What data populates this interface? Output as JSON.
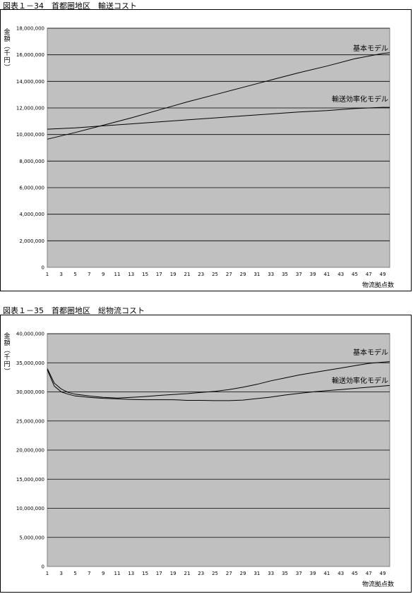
{
  "figures": [
    {
      "title": "図表１－34　首都圏地区　輸送コスト",
      "chart_data": {
        "type": "line",
        "title": "図表１－34　首都圏地区　輸送コスト",
        "ylabel": "金額（千円）",
        "xlabel": "物流拠点数",
        "ylim": [
          0,
          18000000
        ],
        "yticks": [
          0,
          2000000,
          4000000,
          6000000,
          8000000,
          10000000,
          12000000,
          14000000,
          16000000,
          18000000
        ],
        "ytick_labels": [
          "0",
          "2,000,000",
          "4,000,000",
          "6,000,000",
          "8,000,000",
          "10,000,000",
          "12,000,000",
          "14,000,000",
          "16,000,000",
          "18,000,000"
        ],
        "xlim": [
          1,
          50
        ],
        "xticks": [
          1,
          3,
          5,
          7,
          9,
          11,
          13,
          15,
          17,
          19,
          21,
          23,
          25,
          27,
          29,
          31,
          33,
          35,
          37,
          39,
          41,
          43,
          45,
          47,
          49
        ],
        "grid": true,
        "legend": "inline-right",
        "series": [
          {
            "name": "基本モデル",
            "x": [
              1,
              5,
              9,
              13,
              17,
              21,
              25,
              29,
              33,
              37,
              41,
              45,
              49,
              50
            ],
            "y": [
              9650000,
              10150000,
              10700000,
              11250000,
              11850000,
              12450000,
              13000000,
              13550000,
              14100000,
              14650000,
              15150000,
              15700000,
              16100000,
              16150000
            ]
          },
          {
            "name": "輸送効率化モデル",
            "x": [
              1,
              5,
              9,
              13,
              17,
              21,
              25,
              29,
              33,
              37,
              41,
              45,
              49,
              50
            ],
            "y": [
              10400000,
              10500000,
              10650000,
              10800000,
              10950000,
              11100000,
              11250000,
              11400000,
              11550000,
              11700000,
              11800000,
              11950000,
              12050000,
              12050000
            ]
          }
        ]
      }
    },
    {
      "title": "図表１－35　首都圏地区　総物流コスト",
      "chart_data": {
        "type": "line",
        "title": "図表１－35　首都圏地区　総物流コスト",
        "ylabel": "金額（千円）",
        "xlabel": "物流拠点数",
        "ylim": [
          0,
          40000000
        ],
        "yticks": [
          0,
          5000000,
          10000000,
          15000000,
          20000000,
          25000000,
          30000000,
          35000000,
          40000000
        ],
        "ytick_labels": [
          "0",
          "5,000,000",
          "10,000,000",
          "15,000,000",
          "20,000,000",
          "25,000,000",
          "30,000,000",
          "35,000,000",
          "40,000,000"
        ],
        "xlim": [
          1,
          50
        ],
        "xticks": [
          1,
          3,
          5,
          7,
          9,
          11,
          13,
          15,
          17,
          19,
          21,
          23,
          25,
          27,
          29,
          31,
          33,
          35,
          37,
          39,
          41,
          43,
          45,
          47,
          49
        ],
        "grid": true,
        "legend": "inline-right",
        "series": [
          {
            "name": "基本モデル",
            "x": [
              1,
              2,
              3,
              4,
              5,
              7,
              9,
              11,
              13,
              15,
              17,
              19,
              21,
              23,
              25,
              27,
              29,
              31,
              33,
              35,
              37,
              39,
              41,
              43,
              45,
              47,
              49,
              50
            ],
            "y": [
              34000000,
              31500000,
              30500000,
              29900000,
              29600000,
              29300000,
              29050000,
              28950000,
              29050000,
              29200000,
              29400000,
              29550000,
              29700000,
              29900000,
              30100000,
              30400000,
              30800000,
              31300000,
              31900000,
              32400000,
              32900000,
              33300000,
              33700000,
              34100000,
              34500000,
              34900000,
              35100000,
              35200000
            ]
          },
          {
            "name": "輸送効率化モデル",
            "x": [
              1,
              2,
              3,
              4,
              5,
              7,
              9,
              11,
              13,
              15,
              17,
              19,
              21,
              23,
              25,
              27,
              29,
              31,
              33,
              35,
              37,
              39,
              41,
              43,
              45,
              47,
              49,
              50
            ],
            "y": [
              33800000,
              31000000,
              30000000,
              29600000,
              29300000,
              29050000,
              28900000,
              28800000,
              28700000,
              28650000,
              28650000,
              28650000,
              28550000,
              28550000,
              28500000,
              28500000,
              28600000,
              28850000,
              29100000,
              29450000,
              29750000,
              30000000,
              30200000,
              30400000,
              30600000,
              30800000,
              31000000,
              31100000
            ]
          }
        ]
      }
    }
  ]
}
